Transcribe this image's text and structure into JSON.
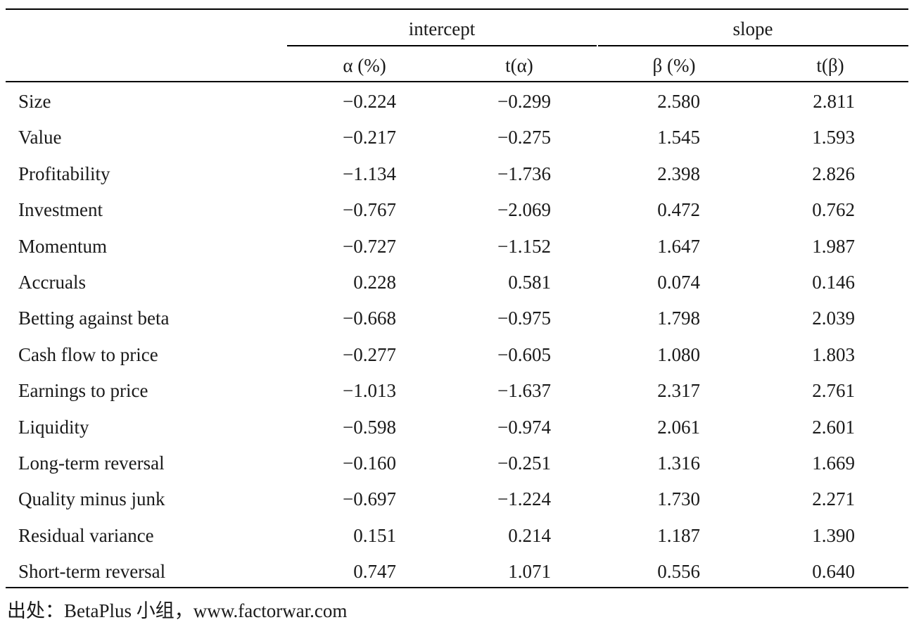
{
  "table": {
    "group_headers": [
      "intercept",
      "slope"
    ],
    "columns": [
      "α (%)",
      "t(α)",
      "β (%)",
      "t(β)"
    ],
    "rows": [
      {
        "label": "Size",
        "values": [
          "−0.224",
          "−0.299",
          "2.580",
          "2.811"
        ]
      },
      {
        "label": "Value",
        "values": [
          "−0.217",
          "−0.275",
          "1.545",
          "1.593"
        ]
      },
      {
        "label": "Profitability",
        "values": [
          "−1.134",
          "−1.736",
          "2.398",
          "2.826"
        ]
      },
      {
        "label": "Investment",
        "values": [
          "−0.767",
          "−2.069",
          "0.472",
          "0.762"
        ]
      },
      {
        "label": "Momentum",
        "values": [
          "−0.727",
          "−1.152",
          "1.647",
          "1.987"
        ]
      },
      {
        "label": "Accruals",
        "values": [
          "0.228",
          "0.581",
          "0.074",
          "0.146"
        ]
      },
      {
        "label": "Betting against beta",
        "values": [
          "−0.668",
          "−0.975",
          "1.798",
          "2.039"
        ]
      },
      {
        "label": "Cash flow to price",
        "values": [
          "−0.277",
          "−0.605",
          "1.080",
          "1.803"
        ]
      },
      {
        "label": "Earnings to price",
        "values": [
          "−1.013",
          "−1.637",
          "2.317",
          "2.761"
        ]
      },
      {
        "label": "Liquidity",
        "values": [
          "−0.598",
          "−0.974",
          "2.061",
          "2.601"
        ]
      },
      {
        "label": "Long-term reversal",
        "values": [
          "−0.160",
          "−0.251",
          "1.316",
          "1.669"
        ]
      },
      {
        "label": "Quality minus junk",
        "values": [
          "−0.697",
          "−1.224",
          "1.730",
          "2.271"
        ]
      },
      {
        "label": "Residual variance",
        "values": [
          "0.151",
          "0.214",
          "1.187",
          "1.390"
        ]
      },
      {
        "label": "Short-term reversal",
        "values": [
          "0.747",
          "1.071",
          "0.556",
          "0.640"
        ]
      }
    ]
  },
  "source_note": "出处：BetaPlus 小组，www.factorwar.com"
}
